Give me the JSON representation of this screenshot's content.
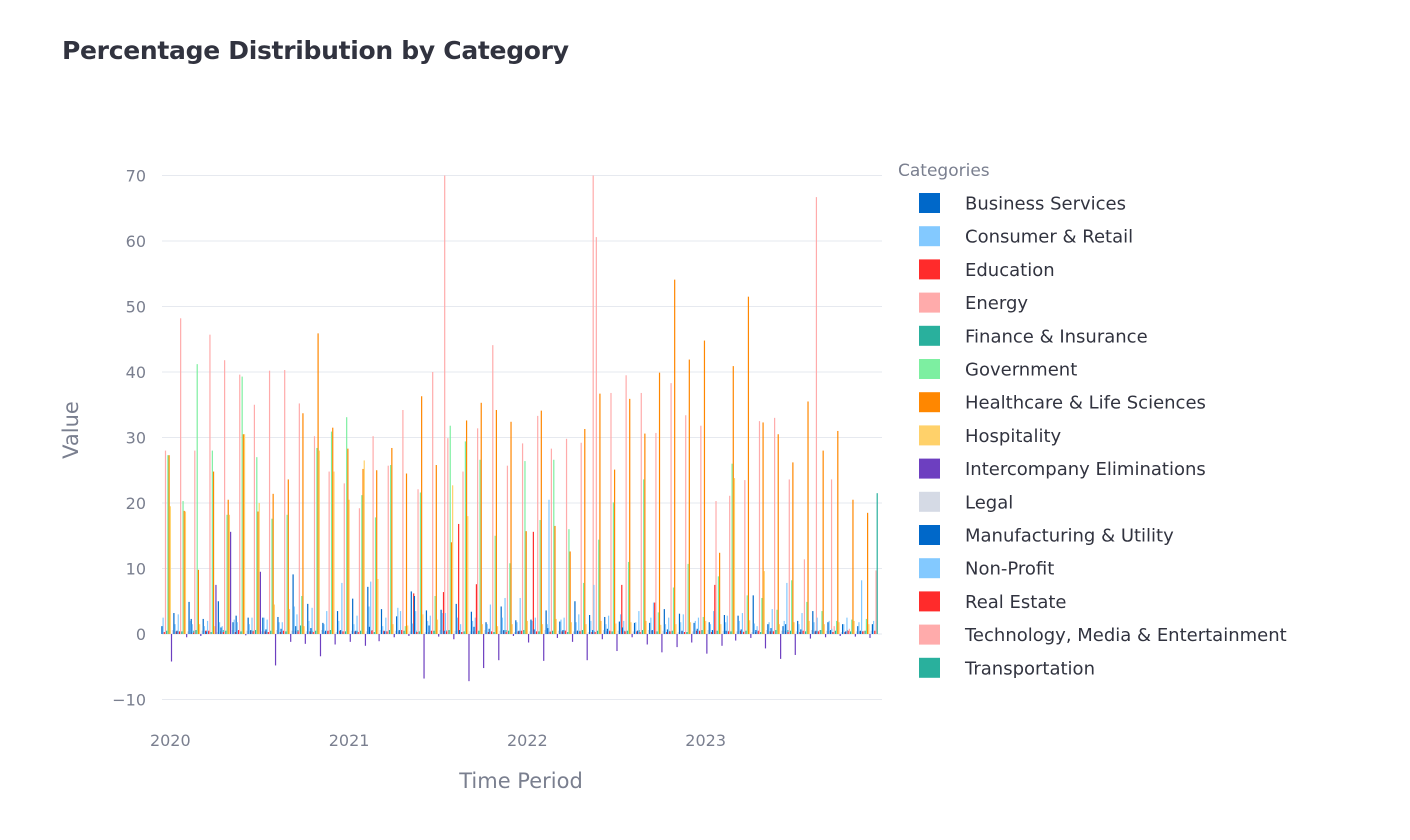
{
  "chart_data": {
    "type": "bar",
    "title": "Percentage Distribution by Category",
    "xlabel": "Time Period",
    "ylabel": "Value",
    "legend_title": "Categories",
    "legend_position": "right",
    "grid": true,
    "ylim": [
      -11.5,
      71
    ],
    "yticks": [
      -10,
      0,
      10,
      20,
      30,
      40,
      50,
      60,
      70
    ],
    "xticks": [
      "2020",
      "2021",
      "2022",
      "2023"
    ],
    "xlim": [
      "2019-12-15",
      "2023-12-28"
    ],
    "periods": [
      "2020-01",
      "2020-02",
      "2020-03",
      "2020-04",
      "2020-05",
      "2020-06",
      "2020-07",
      "2020-08",
      "2020-09",
      "2020-10",
      "2020-11",
      "2020-12",
      "2021-01",
      "2021-02",
      "2021-03",
      "2021-04",
      "2021-05",
      "2021-06",
      "2021-07",
      "2021-08",
      "2021-09",
      "2021-10",
      "2021-11",
      "2021-12",
      "2022-01",
      "2022-02",
      "2022-03",
      "2022-04",
      "2022-05",
      "2022-06",
      "2022-07",
      "2022-08",
      "2022-09",
      "2022-10",
      "2022-11",
      "2022-12",
      "2023-01",
      "2023-02",
      "2023-03",
      "2023-04",
      "2023-05",
      "2023-06",
      "2023-07",
      "2023-08",
      "2023-09",
      "2023-10",
      "2023-11",
      "2023-12"
    ],
    "series": [
      {
        "name": "Business Services",
        "color": "#0068c9",
        "values": [
          1.2,
          0.5,
          2.3,
          0.4,
          1.0,
          2.8,
          0.6,
          0.7,
          0.8,
          1.2,
          0.9,
          0.5,
          0.6,
          0.5,
          1.1,
          0.4,
          0.6,
          5.8,
          1.3,
          0.5,
          0.6,
          1.1,
          0.8,
          0.6,
          0.5,
          0.7,
          0.9,
          0.6,
          0.5,
          0.6,
          0.8,
          1.0,
          0.5,
          0.6,
          0.7,
          0.5,
          0.8,
          0.6,
          0.5,
          0.7,
          0.6,
          0.9,
          1.5,
          0.7,
          0.5,
          0.6,
          0.4,
          0.5
        ]
      },
      {
        "name": "Consumer & Retail",
        "color": "#83c9ff",
        "values": [
          2.5,
          3.0,
          1.5,
          2.0,
          1.2,
          1.8,
          2.5,
          2.2,
          1.8,
          3.0,
          4.0,
          3.5,
          7.8,
          2.8,
          8.0,
          2.5,
          3.5,
          3.5,
          2.8,
          3.2,
          1.5,
          2.5,
          4.5,
          5.5,
          5.5,
          2.5,
          20.5,
          2.5,
          3.0,
          7.5,
          2.8,
          2.0,
          3.5,
          4.8,
          2.5,
          3.0,
          2.5,
          3.5,
          2.8,
          3.2,
          1.2,
          3.8,
          7.8,
          3.2,
          2.5,
          0.8,
          2.5,
          8.2
        ]
      },
      {
        "name": "Education",
        "color": "#ff2b2b",
        "values": [
          0.3,
          0.4,
          0.2,
          0.5,
          0.3,
          0.6,
          0.4,
          0.3,
          0.5,
          0.4,
          0.3,
          0.5,
          0.4,
          0.3,
          0.5,
          0.4,
          0.6,
          0.3,
          0.5,
          0.4,
          0.3,
          7.6,
          0.4,
          0.3,
          0.5,
          0.4,
          0.3,
          0.5,
          0.4,
          0.3,
          0.5,
          0.4,
          0.3,
          4.8,
          0.4,
          0.3,
          0.5,
          7.5,
          0.4,
          0.3,
          0.5,
          0.4,
          0.3,
          0.5,
          0.4,
          0.3,
          0.5,
          0.4
        ]
      },
      {
        "name": "Energy",
        "color": "#ffabab",
        "values": [
          28.0,
          48.2,
          28.0,
          45.7,
          41.8,
          39.6,
          35.0,
          40.2,
          40.3,
          35.2,
          30.2,
          24.8,
          23.0,
          19.2,
          30.2,
          25.7,
          34.2,
          22.1,
          40.0,
          29.9,
          24.8,
          31.4,
          44.1,
          25.7,
          29.1,
          33.3,
          28.3,
          29.8,
          29.2,
          60.6,
          36.8,
          39.5,
          36.8,
          30.7,
          38.3,
          33.4,
          31.8,
          20.3,
          21.1,
          23.5,
          32.5,
          33.0,
          23.6,
          11.4,
          0.6,
          1.2,
          0.8,
          0.5
        ]
      },
      {
        "name": "Finance & Insurance",
        "color": "#29b09d",
        "values": [
          0.5,
          0.4,
          0.6,
          0.3,
          0.5,
          0.4,
          0.6,
          0.5,
          0.4,
          1.3,
          0.5,
          0.6,
          0.4,
          0.5,
          0.3,
          0.6,
          0.5,
          0.4,
          0.5,
          0.6,
          0.4,
          0.5,
          0.3,
          0.5,
          0.6,
          0.4,
          0.5,
          0.3,
          0.6,
          0.5,
          0.4,
          0.5,
          0.6,
          0.4,
          0.5,
          0.3,
          0.6,
          0.5,
          0.4,
          0.5,
          0.3,
          0.6,
          0.5,
          0.4,
          0.6,
          0.5,
          0.4,
          0.5
        ]
      },
      {
        "name": "Government",
        "color": "#7defa1",
        "values": [
          27.3,
          20.3,
          41.2,
          28.0,
          18.2,
          39.3,
          27.0,
          17.6,
          18.2,
          5.8,
          28.4,
          30.9,
          33.1,
          21.2,
          17.8,
          25.8,
          1.2,
          21.6,
          5.8,
          31.8,
          29.4,
          26.6,
          15.0,
          10.8,
          26.4,
          17.4,
          26.6,
          16.0,
          7.8,
          14.4,
          20.1,
          11.0,
          23.6,
          3.3,
          7.1,
          10.7,
          2.6,
          8.8,
          26.0,
          5.9,
          5.5,
          3.7,
          8.2,
          4.9,
          3.5,
          2.0,
          2.2,
          2.3
        ]
      },
      {
        "name": "Healthcare & Life Sciences",
        "color": "#ff8700",
        "values": [
          27.3,
          18.8,
          9.8,
          24.8,
          20.5,
          30.5,
          18.7,
          21.4,
          23.6,
          33.7,
          45.9,
          31.5,
          28.3,
          25.2,
          25.0,
          28.4,
          24.5,
          36.3,
          25.8,
          14.0,
          32.6,
          35.3,
          34.2,
          32.4,
          15.7,
          34.1,
          16.5,
          12.6,
          31.3,
          36.7,
          25.1,
          35.9,
          30.6,
          39.9,
          54.1,
          41.9,
          44.8,
          12.4,
          40.9,
          51.5,
          32.3,
          30.5,
          26.2,
          35.5,
          28.0,
          31.0,
          20.5,
          18.5
        ]
      },
      {
        "name": "Hospitality",
        "color": "#ffd16a",
        "values": [
          19.5,
          18.7,
          1.5,
          1.2,
          18.2,
          30.5,
          20.0,
          4.5,
          3.8,
          1.2,
          28.0,
          24.8,
          20.5,
          26.5,
          8.4,
          1.5,
          1.3,
          3.0,
          2.2,
          22.7,
          18.0,
          1.5,
          1.2,
          1.5,
          2.0,
          1.5,
          2.3,
          1.8,
          1.5,
          2.0,
          1.6,
          1.8,
          2.0,
          1.4,
          1.5,
          1.8,
          2.0,
          1.5,
          23.8,
          2.1,
          9.6,
          1.5,
          1.8,
          2.0,
          1.5,
          1.8,
          2.0,
          1.5
        ]
      },
      {
        "name": "Intercompany Eliminations",
        "color": "#6d3fc0",
        "values": [
          -4.2,
          -0.5,
          -0.3,
          7.5,
          15.6,
          -0.2,
          9.5,
          -4.8,
          -1.2,
          -1.5,
          -3.4,
          -1.6,
          -1.2,
          -1.8,
          -1.1,
          -0.5,
          -0.3,
          -6.8,
          -0.4,
          -0.8,
          -7.2,
          -5.2,
          -4.0,
          -0.3,
          -1.3,
          -4.1,
          -0.6,
          -1.2,
          -4.0,
          -0.8,
          -2.6,
          -0.5,
          -1.6,
          -2.8,
          -2.0,
          -1.3,
          -3.0,
          -1.8,
          -1.0,
          -0.6,
          -2.2,
          -3.8,
          -3.2,
          -0.7,
          -0.5,
          -0.3,
          -0.4,
          -0.6
        ]
      },
      {
        "name": "Legal",
        "color": "#d5dae5",
        "values": [
          0.6,
          0.4,
          0.5,
          0.3,
          0.6,
          0.5,
          0.4,
          0.6,
          0.5,
          0.4,
          0.6,
          0.3,
          0.5,
          0.4,
          0.6,
          0.5,
          0.4,
          0.3,
          0.6,
          0.5,
          0.4,
          0.6,
          0.5,
          0.3,
          0.4,
          0.6,
          0.5,
          0.4,
          0.3,
          0.6,
          0.5,
          0.4,
          0.6,
          0.5,
          0.3,
          0.4,
          0.6,
          0.5,
          0.4,
          0.3,
          0.6,
          0.5,
          0.4,
          0.6,
          0.5,
          0.3,
          0.4,
          0.5
        ]
      },
      {
        "name": "Manufacturing & Utility",
        "color": "#0068c9",
        "values": [
          3.2,
          4.9,
          2.3,
          5.0,
          1.8,
          2.5,
          2.5,
          2.6,
          9.1,
          4.6,
          1.7,
          3.5,
          5.4,
          7.2,
          3.8,
          2.7,
          6.5,
          3.6,
          3.7,
          4.6,
          3.4,
          1.8,
          4.2,
          2.1,
          2.2,
          3.6,
          1.9,
          5.0,
          2.9,
          2.6,
          1.9,
          1.7,
          1.7,
          3.8,
          3.1,
          1.7,
          1.8,
          2.9,
          2.8,
          5.9,
          1.5,
          1.2,
          2.0,
          3.5,
          1.8,
          1.5,
          1.2,
          1.5
        ]
      },
      {
        "name": "Non-Profit",
        "color": "#83c9ff",
        "values": [
          1.5,
          2.0,
          1.2,
          1.8,
          2.2,
          1.5,
          2.5,
          1.8,
          4.2,
          2.0,
          1.5,
          2.0,
          1.5,
          4.2,
          1.2,
          4.0,
          1.6,
          2.0,
          3.2,
          2.5,
          2.0,
          1.5,
          2.5,
          1.8,
          2.0,
          1.5,
          2.2,
          1.8,
          2.0,
          1.5,
          3.0,
          1.8,
          2.5,
          1.5,
          1.8,
          2.0,
          1.5,
          1.8,
          2.0,
          1.6,
          1.8,
          2.0,
          1.5,
          1.8,
          2.0,
          1.5,
          1.8,
          2.0
        ]
      },
      {
        "name": "Real Estate",
        "color": "#ff2b2b",
        "values": [
          0.4,
          0.3,
          0.5,
          0.4,
          0.3,
          0.5,
          0.4,
          0.3,
          0.5,
          0.4,
          0.3,
          0.5,
          0.4,
          0.3,
          0.5,
          0.4,
          6.2,
          0.3,
          6.4,
          16.8,
          0.4,
          0.3,
          0.5,
          0.4,
          15.6,
          0.3,
          0.4,
          0.5,
          0.3,
          0.4,
          7.5,
          0.4,
          0.5,
          0.3,
          0.4,
          0.5,
          0.3,
          0.4,
          0.5,
          0.3,
          0.4,
          0.5,
          0.3,
          0.4,
          0.5,
          0.3,
          0.4,
          0.5
        ]
      },
      {
        "name": "Technology, Media & Entertainment",
        "color": "#ffabab",
        "values": [
          0.5,
          0.4,
          0.6,
          0.3,
          0.5,
          0.4,
          0.6,
          0.5,
          0.4,
          0.6,
          0.5,
          0.3,
          0.4,
          0.6,
          0.5,
          0.4,
          0.3,
          0.5,
          70.0,
          0.4,
          0.6,
          0.5,
          0.3,
          0.4,
          0.6,
          0.5,
          0.4,
          0.3,
          70.0,
          0.5,
          0.4,
          0.6,
          0.5,
          0.3,
          0.4,
          0.6,
          0.5,
          0.4,
          0.3,
          0.6,
          0.5,
          0.4,
          0.6,
          66.7,
          23.6,
          0.5,
          0.4,
          9.7
        ]
      },
      {
        "name": "Transportation",
        "color": "#29b09d",
        "values": [
          0.4,
          0.5,
          0.3,
          0.6,
          0.4,
          0.5,
          0.3,
          0.4,
          0.6,
          0.5,
          0.3,
          0.4,
          0.5,
          0.6,
          0.4,
          0.3,
          0.5,
          0.4,
          0.6,
          0.3,
          0.5,
          0.4,
          0.6,
          0.5,
          0.3,
          0.4,
          0.6,
          0.5,
          0.4,
          0.3,
          0.5,
          0.6,
          0.4,
          0.5,
          0.3,
          0.4,
          0.6,
          0.5,
          0.4,
          0.3,
          0.5,
          0.6,
          0.4,
          0.5,
          0.3,
          0.6,
          0.4,
          21.5
        ]
      }
    ]
  }
}
